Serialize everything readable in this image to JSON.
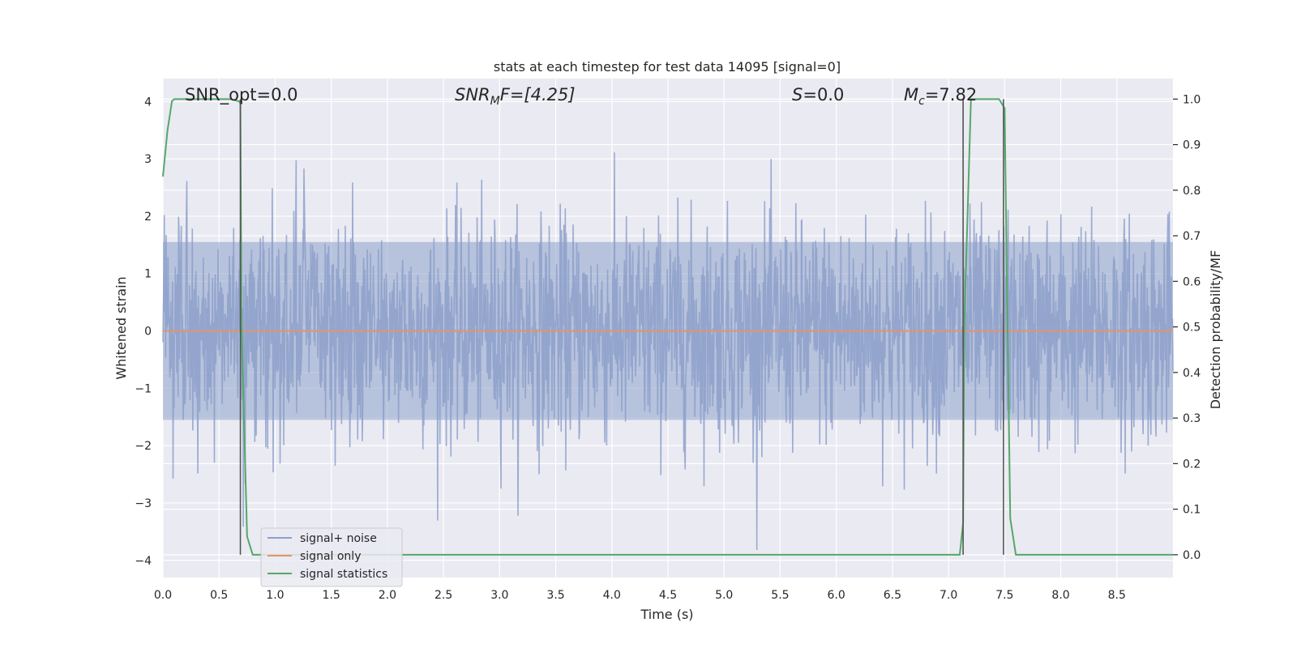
{
  "chart_data": {
    "type": "line",
    "title": "stats at each timestep for test data 14095 [signal=0]",
    "xlabel": "Time (s)",
    "ylabel": "Whitened strain",
    "ylabel_right": "Detection probability/MF",
    "xlim": [
      0,
      9.0
    ],
    "ylim": [
      -4.3,
      4.4
    ],
    "ylim_right": [
      -0.05,
      1.045
    ],
    "xticks": [
      "0.0",
      "0.5",
      "1.0",
      "1.5",
      "2.0",
      "2.5",
      "3.0",
      "3.5",
      "4.0",
      "4.5",
      "5.0",
      "5.5",
      "6.0",
      "6.5",
      "7.0",
      "7.5",
      "8.0",
      "8.5"
    ],
    "xtick_values": [
      0,
      0.5,
      1,
      1.5,
      2,
      2.5,
      3,
      3.5,
      4,
      4.5,
      5,
      5.5,
      6,
      6.5,
      7,
      7.5,
      8,
      8.5
    ],
    "yticks": [
      "−4",
      "−3",
      "−2",
      "−1",
      "0",
      "1",
      "2",
      "3",
      "4"
    ],
    "ytick_values": [
      -4,
      -3,
      -2,
      -1,
      0,
      1,
      2,
      3,
      4
    ],
    "yticks_right": [
      "0.0",
      "0.1",
      "0.2",
      "0.3",
      "0.4",
      "0.5",
      "0.6",
      "0.7",
      "0.8",
      "0.9",
      "1.0"
    ],
    "ytick_right_values": [
      0,
      0.1,
      0.2,
      0.3,
      0.4,
      0.5,
      0.6,
      0.7,
      0.8,
      0.9,
      1.0
    ],
    "grid": true,
    "legend_position": "lower-left",
    "annotations": {
      "snr_opt": "SNR_opt=0.0",
      "snr_mf_main": "SNR",
      "snr_mf_sub": "M",
      "snr_mf_rest": "F=[4.25]",
      "s_main": "S",
      "s_rest": "=0.0",
      "mc_main": "M",
      "mc_sub": "c",
      "mc_rest": "=7.82"
    },
    "series": [
      {
        "name": "signal+ noise",
        "color": "#8da0cb",
        "description_values": "noise amplitude roughly within ±1.6 with spikes up to ±4"
      },
      {
        "name": "signal only",
        "color": "#e5926b",
        "x": [
          0,
          9.0
        ],
        "y": [
          0,
          0
        ]
      },
      {
        "name": "signal statistics",
        "color": "#55a868",
        "axis": "right",
        "x": [
          0,
          0.04,
          0.08,
          0.1,
          0.2,
          0.4,
          0.6,
          0.68,
          0.69,
          0.7,
          0.75,
          0.8,
          1.0,
          2.0,
          3.0,
          4.0,
          5.0,
          6.0,
          7.0,
          7.05,
          7.1,
          7.13,
          7.14,
          7.2,
          7.3,
          7.45,
          7.5,
          7.52,
          7.55,
          7.6,
          7.65,
          8.0,
          9.0
        ],
        "y": [
          0.83,
          0.93,
          0.995,
          1.0,
          1.0,
          1.0,
          1.0,
          0.995,
          0.99,
          0.5,
          0.04,
          0.0,
          0.0,
          0.0,
          0.0,
          0.0,
          0.0,
          0.0,
          0.0,
          0.0,
          0.0,
          0.07,
          0.5,
          1.0,
          1.0,
          1.0,
          0.98,
          0.6,
          0.08,
          0.0,
          0.0,
          0.0,
          0.0
        ]
      }
    ],
    "vertical_markers": [
      0.69,
      7.13,
      7.49
    ]
  }
}
